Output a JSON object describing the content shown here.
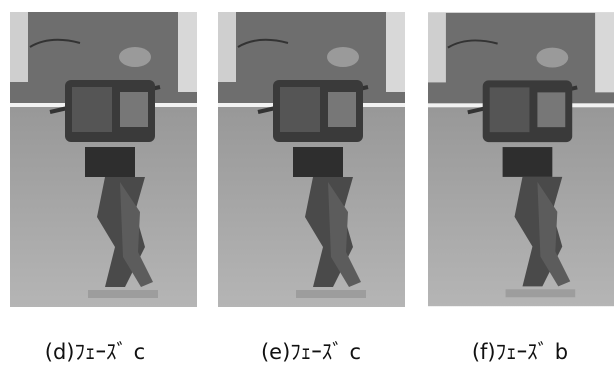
{
  "figures": [
    {
      "caption": "(d)ﾌｪｰｽﾞ c"
    },
    {
      "caption": "(e)ﾌｪｰｽﾞ c"
    },
    {
      "caption": "(f)ﾌｪｰｽﾞ b"
    }
  ]
}
